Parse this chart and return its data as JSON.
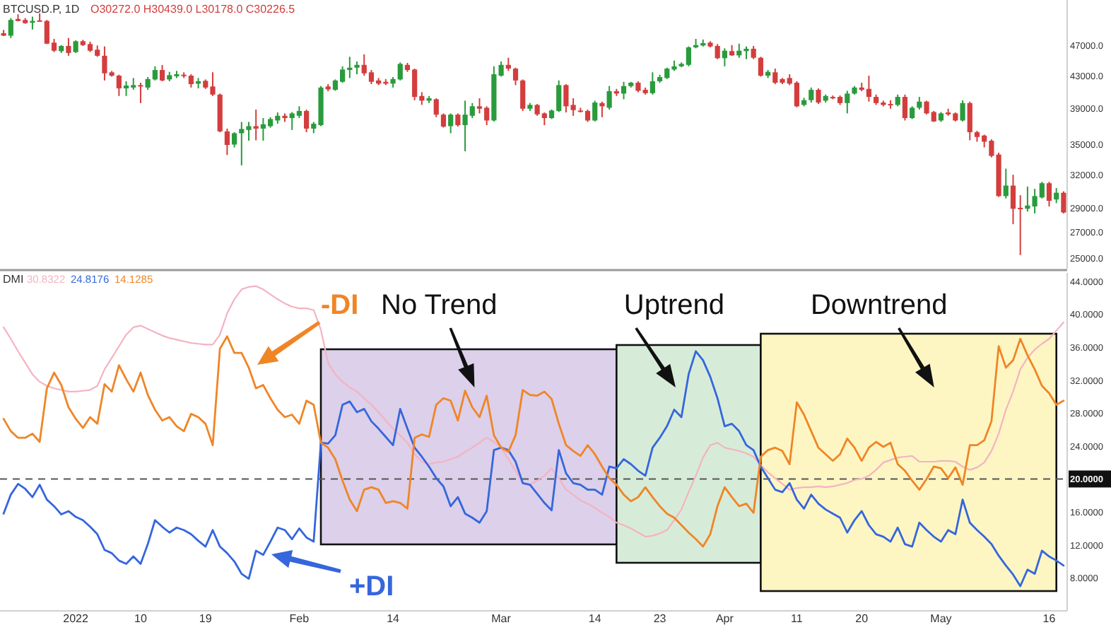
{
  "chart_data": [
    {
      "type": "candlestick",
      "title": "BTCUSD.P, 1D",
      "subtitle": "O30272.0 H30439.0 L30178.0 C30226.5",
      "log": true,
      "tick_labels": "y",
      "xlim": [
        "2021-12-21T12:00",
        "2022-05-18T12:00"
      ],
      "ylim": [
        24200,
        53800
      ],
      "yticks": [
        {
          "value": 25000,
          "label": "25000.0"
        },
        {
          "value": 27000,
          "label": "27000.0"
        },
        {
          "value": 29000,
          "label": "29000.0"
        },
        {
          "value": 32000,
          "label": "32000.0"
        },
        {
          "value": 35000,
          "label": "35000.0"
        },
        {
          "value": 39000,
          "label": "39000.0"
        },
        {
          "value": 43000,
          "label": "43000.0"
        },
        {
          "value": 47000,
          "label": "47000.0"
        }
      ],
      "x": [
        "2021-12-22",
        "2021-12-23",
        "2021-12-24",
        "2021-12-25",
        "2021-12-26",
        "2021-12-27",
        "2021-12-28",
        "2021-12-29",
        "2021-12-30",
        "2021-12-31",
        "2022-01-01",
        "2022-01-02",
        "2022-01-03",
        "2022-01-04",
        "2022-01-05",
        "2022-01-06",
        "2022-01-07",
        "2022-01-08",
        "2022-01-09",
        "2022-01-10",
        "2022-01-11",
        "2022-01-12",
        "2022-01-13",
        "2022-01-14",
        "2022-01-15",
        "2022-01-16",
        "2022-01-17",
        "2022-01-18",
        "2022-01-19",
        "2022-01-20",
        "2022-01-21",
        "2022-01-22",
        "2022-01-23",
        "2022-01-24",
        "2022-01-25",
        "2022-01-26",
        "2022-01-27",
        "2022-01-28",
        "2022-01-29",
        "2022-01-30",
        "2022-01-31",
        "2022-02-01",
        "2022-02-02",
        "2022-02-03",
        "2022-02-04",
        "2022-02-05",
        "2022-02-06",
        "2022-02-07",
        "2022-02-08",
        "2022-02-09",
        "2022-02-10",
        "2022-02-11",
        "2022-02-12",
        "2022-02-13",
        "2022-02-14",
        "2022-02-15",
        "2022-02-16",
        "2022-02-17",
        "2022-02-18",
        "2022-02-19",
        "2022-02-20",
        "2022-02-21",
        "2022-02-22",
        "2022-02-23",
        "2022-02-24",
        "2022-02-25",
        "2022-02-26",
        "2022-02-27",
        "2022-02-28",
        "2022-03-01",
        "2022-03-02",
        "2022-03-03",
        "2022-03-04",
        "2022-03-05",
        "2022-03-06",
        "2022-03-07",
        "2022-03-08",
        "2022-03-09",
        "2022-03-10",
        "2022-03-11",
        "2022-03-12",
        "2022-03-13",
        "2022-03-14",
        "2022-03-15",
        "2022-03-16",
        "2022-03-17",
        "2022-03-18",
        "2022-03-19",
        "2022-03-20",
        "2022-03-21",
        "2022-03-22",
        "2022-03-23",
        "2022-03-24",
        "2022-03-25",
        "2022-03-26",
        "2022-03-27",
        "2022-03-28",
        "2022-03-29",
        "2022-03-30",
        "2022-03-31",
        "2022-04-01",
        "2022-04-02",
        "2022-04-03",
        "2022-04-04",
        "2022-04-05",
        "2022-04-06",
        "2022-04-07",
        "2022-04-08",
        "2022-04-09",
        "2022-04-10",
        "2022-04-11",
        "2022-04-12",
        "2022-04-13",
        "2022-04-14",
        "2022-04-15",
        "2022-04-16",
        "2022-04-17",
        "2022-04-18",
        "2022-04-19",
        "2022-04-20",
        "2022-04-21",
        "2022-04-22",
        "2022-04-23",
        "2022-04-24",
        "2022-04-25",
        "2022-04-26",
        "2022-04-27",
        "2022-04-28",
        "2022-04-29",
        "2022-04-30",
        "2022-05-01",
        "2022-05-02",
        "2022-05-03",
        "2022-05-04",
        "2022-05-05",
        "2022-05-06",
        "2022-05-07",
        "2022-05-08",
        "2022-05-09",
        "2022-05-10",
        "2022-05-11",
        "2022-05-12",
        "2022-05-13",
        "2022-05-14",
        "2022-05-15",
        "2022-05-16",
        "2022-05-17",
        "2022-05-18"
      ],
      "ohlc": [
        [
          48740,
          49220,
          48330,
          48390
        ],
        [
          48390,
          50980,
          48050,
          50700
        ],
        [
          50850,
          51560,
          50490,
          50550
        ],
        [
          50700,
          50980,
          50130,
          50220
        ],
        [
          50280,
          51200,
          49280,
          50550
        ],
        [
          50640,
          51710,
          50490,
          50550
        ],
        [
          50550,
          50700,
          47190,
          47250
        ],
        [
          47390,
          47920,
          46080,
          46270
        ],
        [
          46210,
          47050,
          45960,
          46930
        ],
        [
          46930,
          48050,
          45580,
          45960
        ],
        [
          46080,
          47720,
          45960,
          47590
        ],
        [
          47590,
          47790,
          46930,
          47050
        ],
        [
          47190,
          47530,
          46080,
          46270
        ],
        [
          46410,
          46990,
          45440,
          45580
        ],
        [
          45580,
          46860,
          42350,
          43260
        ],
        [
          43390,
          43570,
          42840,
          42960
        ],
        [
          42960,
          43080,
          40440,
          41370
        ],
        [
          41370,
          42250,
          40440,
          41720
        ],
        [
          41470,
          42660,
          41190,
          41770
        ],
        [
          41770,
          42070,
          39590,
          41720
        ],
        [
          41470,
          42780,
          41190,
          42530
        ],
        [
          42480,
          44170,
          42350,
          43690
        ],
        [
          43690,
          44350,
          42250,
          42350
        ],
        [
          42480,
          43450,
          42250,
          43020
        ],
        [
          42890,
          43570,
          42660,
          43140
        ],
        [
          43080,
          43390,
          42660,
          42960
        ],
        [
          42960,
          43140,
          41470,
          41890
        ],
        [
          41950,
          42660,
          41370,
          42250
        ],
        [
          42300,
          42480,
          41300,
          41470
        ],
        [
          41600,
          43390,
          40440,
          40610
        ],
        [
          40610,
          40730,
          36310,
          36400
        ],
        [
          36400,
          36700,
          33940,
          34960
        ],
        [
          35000,
          36310,
          34710,
          36200
        ],
        [
          36200,
          37440,
          32900,
          36660
        ],
        [
          36550,
          37440,
          35410,
          36970
        ],
        [
          36970,
          38840,
          35450,
          36700
        ],
        [
          36700,
          37870,
          35410,
          37180
        ],
        [
          36970,
          37970,
          36810,
          37760
        ],
        [
          37600,
          38510,
          37240,
          38130
        ],
        [
          38130,
          38400,
          37440,
          37870
        ],
        [
          37870,
          38560,
          36550,
          38400
        ],
        [
          38130,
          39220,
          37870,
          38680
        ],
        [
          38680,
          38840,
          36310,
          36700
        ],
        [
          36700,
          37440,
          36200,
          37240
        ],
        [
          37080,
          41650,
          36970,
          41470
        ],
        [
          41600,
          41890,
          41020,
          41250
        ],
        [
          41190,
          42480,
          41070,
          42350
        ],
        [
          42180,
          44170,
          42070,
          43750
        ],
        [
          43690,
          45440,
          42660,
          43990
        ],
        [
          43990,
          44810,
          43140,
          44360
        ],
        [
          44360,
          45770,
          42960,
          43260
        ],
        [
          43390,
          43690,
          41890,
          42180
        ],
        [
          42350,
          42660,
          41770,
          41950
        ],
        [
          42180,
          42530,
          41770,
          41950
        ],
        [
          41950,
          42780,
          41470,
          42530
        ],
        [
          42480,
          44680,
          42350,
          44490
        ],
        [
          44360,
          44620,
          43450,
          43690
        ],
        [
          43750,
          43870,
          39930,
          40330
        ],
        [
          40440,
          40900,
          39390,
          39880
        ],
        [
          39880,
          40440,
          39600,
          40170
        ],
        [
          40050,
          40170,
          37970,
          38260
        ],
        [
          38260,
          38400,
          36810,
          36920
        ],
        [
          36970,
          38400,
          36200,
          38260
        ],
        [
          38260,
          38400,
          36920,
          37080
        ],
        [
          37080,
          39880,
          34310,
          38260
        ],
        [
          38130,
          39600,
          37870,
          39220
        ],
        [
          39220,
          40170,
          38400,
          38940
        ],
        [
          39050,
          39220,
          37080,
          37600
        ],
        [
          37600,
          44170,
          37490,
          43140
        ],
        [
          42960,
          44810,
          42840,
          44360
        ],
        [
          44360,
          45310,
          43570,
          43870
        ],
        [
          43870,
          43990,
          41770,
          42350
        ],
        [
          42350,
          42480,
          38680,
          38940
        ],
        [
          38940,
          39600,
          38680,
          39380
        ],
        [
          39380,
          39490,
          38130,
          38290
        ],
        [
          38400,
          38510,
          37080,
          37870
        ],
        [
          37870,
          38840,
          37760,
          38730
        ],
        [
          38680,
          42350,
          38560,
          41770
        ],
        [
          41770,
          41890,
          38510,
          39220
        ],
        [
          39380,
          40170,
          38130,
          38780
        ],
        [
          38730,
          39050,
          38510,
          38680
        ],
        [
          38680,
          38840,
          37440,
          37600
        ],
        [
          37600,
          39880,
          37490,
          39660
        ],
        [
          39600,
          39770,
          37970,
          39220
        ],
        [
          39050,
          41650,
          38840,
          41020
        ],
        [
          41020,
          41300,
          40440,
          40730
        ],
        [
          40730,
          42180,
          40050,
          41650
        ],
        [
          41650,
          42180,
          41470,
          42070
        ],
        [
          42070,
          42250,
          40900,
          41070
        ],
        [
          41190,
          41470,
          40610,
          40780
        ],
        [
          40780,
          43390,
          40610,
          42250
        ],
        [
          42250,
          43080,
          42070,
          42780
        ],
        [
          42660,
          43990,
          42530,
          43870
        ],
        [
          43750,
          44930,
          43570,
          44170
        ],
        [
          44170,
          44680,
          44060,
          44490
        ],
        [
          44360,
          46860,
          44170,
          46730
        ],
        [
          46730,
          47920,
          46600,
          47050
        ],
        [
          46990,
          47840,
          46860,
          47330
        ],
        [
          47390,
          47590,
          46730,
          46860
        ],
        [
          46930,
          47190,
          45120,
          45250
        ],
        [
          45250,
          46600,
          44170,
          46270
        ],
        [
          46210,
          47050,
          45580,
          45630
        ],
        [
          45630,
          47250,
          45310,
          46270
        ],
        [
          46210,
          46860,
          45120,
          46540
        ],
        [
          46540,
          46930,
          45120,
          45310
        ],
        [
          45310,
          45440,
          42840,
          42960
        ],
        [
          42960,
          43690,
          42660,
          43450
        ],
        [
          43390,
          43870,
          41890,
          42070
        ],
        [
          42530,
          42660,
          41890,
          42070
        ],
        [
          42660,
          43140,
          41770,
          41950
        ],
        [
          42070,
          42250,
          39100,
          39220
        ],
        [
          39380,
          40220,
          39220,
          39940
        ],
        [
          39940,
          41470,
          39660,
          41190
        ],
        [
          41190,
          41370,
          39490,
          39660
        ],
        [
          39880,
          40610,
          39660,
          40440
        ],
        [
          40330,
          40500,
          40050,
          40270
        ],
        [
          40330,
          40500,
          39380,
          39600
        ],
        [
          39600,
          41070,
          38400,
          40730
        ],
        [
          40730,
          41650,
          40610,
          41470
        ],
        [
          41470,
          42070,
          41020,
          41190
        ],
        [
          41300,
          42960,
          39770,
          40330
        ],
        [
          40330,
          40610,
          39380,
          39600
        ],
        [
          39660,
          39880,
          39220,
          39380
        ],
        [
          39490,
          39930,
          38940,
          39380
        ],
        [
          39380,
          40610,
          39220,
          40330
        ],
        [
          40330,
          40610,
          37600,
          37870
        ],
        [
          37870,
          39220,
          37760,
          39050
        ],
        [
          39050,
          40330,
          38840,
          39770
        ],
        [
          39770,
          39880,
          38290,
          38400
        ],
        [
          38560,
          38680,
          37440,
          37490
        ],
        [
          37600,
          38560,
          37440,
          38400
        ],
        [
          38510,
          38940,
          38130,
          38290
        ],
        [
          38400,
          38510,
          37490,
          37600
        ],
        [
          37600,
          39930,
          37490,
          39600
        ],
        [
          39600,
          39770,
          35450,
          36310
        ],
        [
          36310,
          36460,
          35300,
          35800
        ],
        [
          35950,
          36050,
          34710,
          35300
        ],
        [
          35400,
          35550,
          33700,
          33840
        ],
        [
          33980,
          34170,
          29950,
          30030
        ],
        [
          30030,
          32580,
          29820,
          30980
        ],
        [
          30980,
          32000,
          27620,
          28920
        ],
        [
          29000,
          30110,
          25200,
          28920
        ],
        [
          28920,
          30890,
          28680,
          29200
        ],
        [
          29120,
          30680,
          28520,
          30030
        ],
        [
          29910,
          31330,
          29820,
          31200
        ],
        [
          31200,
          31330,
          29120,
          29610
        ],
        [
          29730,
          30760,
          29410,
          30330
        ],
        [
          30330,
          30460,
          28520,
          28600
        ]
      ]
    },
    {
      "type": "line",
      "title": "DMI",
      "annotations": [
        "30.8322",
        "24.8176",
        "14.1285"
      ],
      "xlim": [
        "2021-12-21T12:00",
        "2022-05-18T12:00"
      ],
      "xticks": [
        {
          "value": "2022-01-01",
          "label": "2022"
        },
        {
          "value": "2022-01-10",
          "label": "10"
        },
        {
          "value": "2022-01-19",
          "label": "19"
        },
        {
          "value": "2022-02-01",
          "label": "Feb"
        },
        {
          "value": "2022-02-14",
          "label": "14"
        },
        {
          "value": "2022-03-01",
          "label": "Mar"
        },
        {
          "value": "2022-03-14",
          "label": "14"
        },
        {
          "value": "2022-03-23",
          "label": "23"
        },
        {
          "value": "2022-04-01",
          "label": "Apr"
        },
        {
          "value": "2022-04-11",
          "label": "11"
        },
        {
          "value": "2022-04-20",
          "label": "20"
        },
        {
          "value": "2022-05-01",
          "label": "May"
        },
        {
          "value": "2022-05-16",
          "label": "16"
        }
      ],
      "ylim": [
        4,
        45
      ],
      "yticks": [
        {
          "value": 8,
          "label": "8.0000"
        },
        {
          "value": 12,
          "label": "12.0000"
        },
        {
          "value": 16,
          "label": "16.0000"
        },
        {
          "value": 24,
          "label": "24.0000"
        },
        {
          "value": 28,
          "label": "28.0000"
        },
        {
          "value": 32,
          "label": "32.0000"
        },
        {
          "value": 36,
          "label": "36.0000"
        },
        {
          "value": 40,
          "label": "40.0000"
        },
        {
          "value": 44,
          "label": "44.0000"
        }
      ],
      "x": [
        "2021-12-22",
        "2021-12-23",
        "2021-12-24",
        "2021-12-25",
        "2021-12-26",
        "2021-12-27",
        "2021-12-28",
        "2021-12-29",
        "2021-12-30",
        "2021-12-31",
        "2022-01-01",
        "2022-01-02",
        "2022-01-03",
        "2022-01-04",
        "2022-01-05",
        "2022-01-06",
        "2022-01-07",
        "2022-01-08",
        "2022-01-09",
        "2022-01-10",
        "2022-01-11",
        "2022-01-12",
        "2022-01-13",
        "2022-01-14",
        "2022-01-15",
        "2022-01-16",
        "2022-01-17",
        "2022-01-18",
        "2022-01-19",
        "2022-01-20",
        "2022-01-21",
        "2022-01-22",
        "2022-01-23",
        "2022-01-24",
        "2022-01-25",
        "2022-01-26",
        "2022-01-27",
        "2022-01-28",
        "2022-01-29",
        "2022-01-30",
        "2022-01-31",
        "2022-02-01",
        "2022-02-02",
        "2022-02-03",
        "2022-02-04",
        "2022-02-05",
        "2022-02-06",
        "2022-02-07",
        "2022-02-08",
        "2022-02-09",
        "2022-02-10",
        "2022-02-11",
        "2022-02-12",
        "2022-02-13",
        "2022-02-14",
        "2022-02-15",
        "2022-02-16",
        "2022-02-17",
        "2022-02-18",
        "2022-02-19",
        "2022-02-20",
        "2022-02-21",
        "2022-02-22",
        "2022-02-23",
        "2022-02-24",
        "2022-02-25",
        "2022-02-26",
        "2022-02-27",
        "2022-02-28",
        "2022-03-01",
        "2022-03-02",
        "2022-03-03",
        "2022-03-04",
        "2022-03-05",
        "2022-03-06",
        "2022-03-07",
        "2022-03-08",
        "2022-03-09",
        "2022-03-10",
        "2022-03-11",
        "2022-03-12",
        "2022-03-13",
        "2022-03-14",
        "2022-03-15",
        "2022-03-16",
        "2022-03-17",
        "2022-03-18",
        "2022-03-19",
        "2022-03-20",
        "2022-03-21",
        "2022-03-22",
        "2022-03-23",
        "2022-03-24",
        "2022-03-25",
        "2022-03-26",
        "2022-03-27",
        "2022-03-28",
        "2022-03-29",
        "2022-03-30",
        "2022-03-31",
        "2022-04-01",
        "2022-04-02",
        "2022-04-03",
        "2022-04-04",
        "2022-04-05",
        "2022-04-06",
        "2022-04-07",
        "2022-04-08",
        "2022-04-09",
        "2022-04-10",
        "2022-04-11",
        "2022-04-12",
        "2022-04-13",
        "2022-04-14",
        "2022-04-15",
        "2022-04-16",
        "2022-04-17",
        "2022-04-18",
        "2022-04-19",
        "2022-04-20",
        "2022-04-21",
        "2022-04-22",
        "2022-04-23",
        "2022-04-24",
        "2022-04-25",
        "2022-04-26",
        "2022-04-27",
        "2022-04-28",
        "2022-04-29",
        "2022-04-30",
        "2022-05-01",
        "2022-05-02",
        "2022-05-03",
        "2022-05-04",
        "2022-05-05",
        "2022-05-06",
        "2022-05-07",
        "2022-05-08",
        "2022-05-09",
        "2022-05-10",
        "2022-05-11",
        "2022-05-12",
        "2022-05-13",
        "2022-05-14",
        "2022-05-15",
        "2022-05-16",
        "2022-05-17",
        "2022-05-18"
      ],
      "bands": [
        {
          "axis": "x",
          "from": "2022-02-04",
          "to": "2022-03-17",
          "label": "No Trend",
          "color": "#dcd0ea"
        },
        {
          "axis": "x",
          "from": "2022-03-17",
          "to": "2022-04-06",
          "label": "Uptrend",
          "color": "#d7ecd8"
        },
        {
          "axis": "x",
          "from": "2022-04-06",
          "to": "2022-05-17",
          "label": "Downtrend",
          "color": "#fdf6c3"
        }
      ],
      "ref_lines": [
        {
          "axis": "y",
          "value": 20,
          "label": "20.0000",
          "line_style": "dashed",
          "color": "#555555"
        }
      ],
      "series": [
        {
          "color": "#f4b3c1",
          "values": [
            38.4,
            37.0,
            35.5,
            34.1,
            32.7,
            31.8,
            31.3,
            31.0,
            30.8,
            30.6,
            30.6,
            30.7,
            30.8,
            31.3,
            33.3,
            34.7,
            36.1,
            37.5,
            38.4,
            38.6,
            38.2,
            37.8,
            37.4,
            37.1,
            36.9,
            36.7,
            36.5,
            36.4,
            36.3,
            36.3,
            37.5,
            40.1,
            41.8,
            43.0,
            43.3,
            43.4,
            43.0,
            42.4,
            41.8,
            41.3,
            40.9,
            40.7,
            40.7,
            40.5,
            38.1,
            34.1,
            32.7,
            31.8,
            31.1,
            30.6,
            29.8,
            29.0,
            28.1,
            27.1,
            26.1,
            25.3,
            24.4,
            23.0,
            22.1,
            21.8,
            22.0,
            22.1,
            22.4,
            22.7,
            23.3,
            23.8,
            24.4,
            25.0,
            24.5,
            23.8,
            22.4,
            21.0,
            19.5,
            19.3,
            19.8,
            20.4,
            21.3,
            20.1,
            18.7,
            18.1,
            17.4,
            17.0,
            16.5,
            15.9,
            15.4,
            14.7,
            14.4,
            14.0,
            13.5,
            13.0,
            13.1,
            13.4,
            13.8,
            15.0,
            16.3,
            18.4,
            20.4,
            22.6,
            24.1,
            24.4,
            23.8,
            23.6,
            23.4,
            23.1,
            22.7,
            21.7,
            20.8,
            20.1,
            19.4,
            18.7,
            18.9,
            19.0,
            19.0,
            19.1,
            19.0,
            19.1,
            19.3,
            19.5,
            19.9,
            20.0,
            20.4,
            21.1,
            22.0,
            22.3,
            22.6,
            22.7,
            22.8,
            22.1,
            22.1,
            22.1,
            22.2,
            22.2,
            22.1,
            21.5,
            21.1,
            21.4,
            22.0,
            23.4,
            25.5,
            28.4,
            30.6,
            33.3,
            34.7,
            35.7,
            36.4,
            37.0,
            38.0,
            39.0
          ]
        },
        {
          "name": "+DI",
          "color": "#3566dd",
          "values": [
            15.8,
            18.1,
            19.4,
            18.8,
            17.8,
            19.3,
            17.5,
            16.7,
            15.7,
            16.1,
            15.4,
            15.0,
            14.2,
            13.3,
            11.4,
            11.0,
            10.1,
            9.7,
            10.6,
            9.7,
            12.1,
            15.0,
            14.2,
            13.5,
            14.1,
            13.8,
            13.3,
            12.5,
            11.8,
            13.8,
            11.8,
            11.0,
            10.0,
            8.5,
            7.9,
            11.3,
            10.8,
            12.4,
            14.1,
            13.8,
            12.7,
            14.0,
            12.9,
            12.4,
            24.4,
            24.3,
            25.3,
            29.0,
            29.4,
            28.1,
            28.5,
            27.0,
            26.1,
            25.1,
            24.1,
            28.5,
            26.1,
            23.8,
            22.7,
            21.5,
            20.1,
            19.1,
            16.7,
            17.8,
            15.8,
            15.3,
            14.7,
            16.1,
            23.5,
            23.8,
            23.5,
            22.1,
            19.5,
            19.3,
            18.2,
            17.1,
            16.2,
            23.5,
            20.7,
            19.5,
            19.3,
            18.7,
            18.7,
            18.1,
            21.5,
            21.3,
            22.4,
            21.8,
            21.0,
            20.4,
            23.8,
            25.0,
            26.4,
            28.4,
            27.5,
            32.7,
            35.5,
            34.4,
            32.4,
            29.8,
            26.4,
            26.7,
            25.8,
            24.1,
            23.5,
            21.5,
            20.1,
            18.7,
            18.4,
            19.5,
            17.5,
            16.4,
            18.1,
            17.0,
            16.3,
            15.8,
            15.3,
            13.5,
            15.0,
            16.1,
            14.4,
            13.3,
            13.0,
            12.4,
            14.1,
            12.1,
            11.8,
            14.7,
            13.8,
            13.0,
            12.4,
            13.8,
            13.3,
            17.5,
            14.7,
            13.8,
            13.0,
            12.1,
            10.7,
            9.5,
            8.4,
            7.0,
            9.0,
            8.5,
            11.3,
            10.6,
            10.1,
            9.5
          ]
        },
        {
          "name": "-DI",
          "color": "#f08526",
          "values": [
            27.3,
            25.8,
            25.0,
            25.0,
            25.5,
            24.5,
            31.0,
            32.9,
            31.4,
            28.7,
            27.3,
            26.2,
            27.5,
            26.7,
            31.5,
            30.6,
            33.8,
            32.1,
            30.6,
            32.9,
            30.2,
            28.4,
            27.1,
            27.5,
            26.4,
            25.8,
            27.9,
            27.5,
            26.7,
            24.1,
            35.8,
            37.3,
            35.3,
            35.3,
            33.5,
            31.0,
            31.4,
            29.8,
            28.4,
            27.5,
            27.8,
            26.7,
            29.5,
            29.0,
            24.4,
            23.8,
            22.4,
            19.8,
            17.5,
            16.1,
            18.7,
            19.0,
            18.7,
            17.1,
            17.3,
            17.1,
            16.4,
            25.0,
            25.4,
            25.1,
            29.0,
            29.8,
            29.5,
            27.1,
            30.7,
            28.7,
            27.5,
            30.1,
            25.3,
            23.8,
            23.3,
            25.3,
            30.8,
            30.2,
            30.1,
            30.6,
            29.7,
            26.7,
            24.1,
            23.4,
            22.8,
            24.1,
            23.0,
            21.5,
            20.1,
            19.3,
            18.1,
            17.3,
            17.8,
            19.0,
            17.8,
            16.7,
            15.8,
            15.3,
            14.4,
            13.5,
            12.7,
            11.8,
            13.3,
            16.7,
            19.0,
            17.8,
            16.7,
            17.0,
            15.9,
            22.7,
            23.5,
            23.8,
            23.4,
            21.8,
            29.3,
            27.8,
            25.8,
            23.8,
            23.0,
            22.2,
            23.0,
            24.9,
            23.8,
            22.2,
            23.8,
            24.5,
            23.9,
            24.4,
            21.8,
            21.0,
            19.8,
            18.7,
            20.0,
            21.5,
            21.3,
            20.1,
            21.4,
            19.3,
            24.1,
            24.1,
            24.7,
            27.0,
            36.1,
            33.5,
            34.4,
            37.0,
            35.0,
            33.3,
            31.3,
            30.4,
            29.0,
            29.5
          ]
        }
      ]
    }
  ]
}
